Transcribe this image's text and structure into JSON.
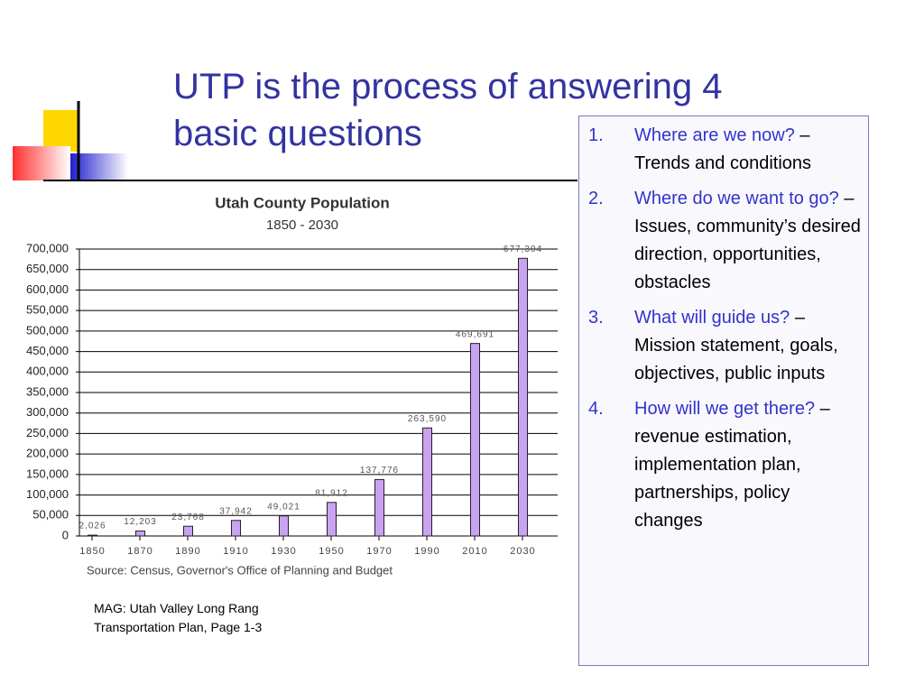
{
  "slide": {
    "title": [
      "UTP is the process of answering 4",
      "basic questions"
    ],
    "caption": [
      "MAG: Utah Valley Long Rang",
      "Transportation Plan, Page 1-3"
    ],
    "items": [
      {
        "number": "1.",
        "question": "Where are we now?",
        "rest": " – Trends and conditions"
      },
      {
        "number": "2.",
        "question": "Where do we want to go?",
        "rest": " – Issues, community’s desired direction, opportunities, obstacles"
      },
      {
        "number": "3.",
        "question": "What will guide us?",
        "rest": " – Mission statement, goals, objectives, public inputs"
      },
      {
        "number": "4.",
        "question": "How will we get there?",
        "rest": " – revenue estimation, implementation plan, partnerships, policy changes"
      }
    ]
  },
  "chart_data": {
    "type": "bar",
    "title": "Utah County Population",
    "subtitle": "1850 - 2030",
    "source": "Source: Census, Governor's Office of Planning and Budget",
    "categories": [
      "1850",
      "1870",
      "1890",
      "1910",
      "1930",
      "1950",
      "1970",
      "1990",
      "2010",
      "2030"
    ],
    "values": [
      2026,
      12203,
      23768,
      37942,
      49021,
      81912,
      137776,
      263590,
      469691,
      677304
    ],
    "value_labels": [
      "2,026",
      "12,203",
      "23,768",
      "37,942",
      "49,021",
      "81,912",
      "137,776",
      "263,590",
      "469,691",
      "677,304"
    ],
    "color": "#c9a3f2",
    "ylim": [
      0,
      700000
    ],
    "yticks": [
      0,
      {
        "value": 50000,
        "label": "50,000"
      },
      {
        "value": 100000,
        "label": "100,000"
      },
      {
        "value": 150000,
        "label": "150,000"
      },
      {
        "value": 200000,
        "label": "200,000"
      },
      {
        "value": 250000,
        "label": "250,000"
      },
      {
        "value": 300000,
        "label": "300,000"
      },
      {
        "value": 350000,
        "label": "350,000"
      },
      {
        "value": 400000,
        "label": "400,000"
      },
      {
        "value": 450000,
        "label": "450,000"
      },
      {
        "value": 500000,
        "label": "500,000"
      },
      {
        "value": 550000,
        "label": "550,000"
      },
      {
        "value": 600000,
        "label": "600,000"
      },
      {
        "value": 650000,
        "label": "650,000"
      },
      {
        "value": 700000,
        "label": "700,000"
      }
    ],
    "grid": true
  }
}
